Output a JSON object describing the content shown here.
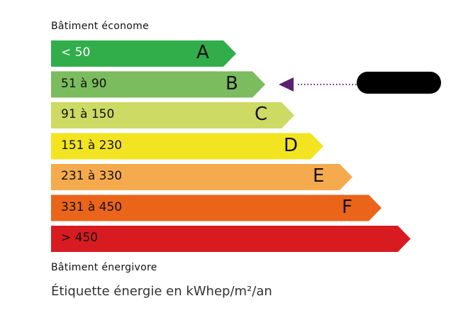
{
  "header": "Bâtiment économe",
  "footer": "Bâtiment énergivore",
  "unit_label": "Étiquette énergie en kWhep/m²/an",
  "indicator": {
    "class": "B",
    "color": "#5b2070",
    "value_redacted": true
  },
  "classes": [
    {
      "letter": "A",
      "range": "< 50",
      "color": "#31ad4a",
      "text_color": "#ffffff"
    },
    {
      "letter": "B",
      "range": "51 à 90",
      "color": "#7bbc5e",
      "text_color": "#111111"
    },
    {
      "letter": "C",
      "range": "91 à 150",
      "color": "#cdda63",
      "text_color": "#111111"
    },
    {
      "letter": "D",
      "range": "151 à 230",
      "color": "#f3e421",
      "text_color": "#111111"
    },
    {
      "letter": "E",
      "range": "231 à 330",
      "color": "#f5ab4d",
      "text_color": "#111111"
    },
    {
      "letter": "F",
      "range": "331 à 450",
      "color": "#ea6519",
      "text_color": "#111111"
    },
    {
      "letter": "",
      "range": "> 450",
      "color": "#d81b20",
      "text_color": "#111111"
    }
  ]
}
